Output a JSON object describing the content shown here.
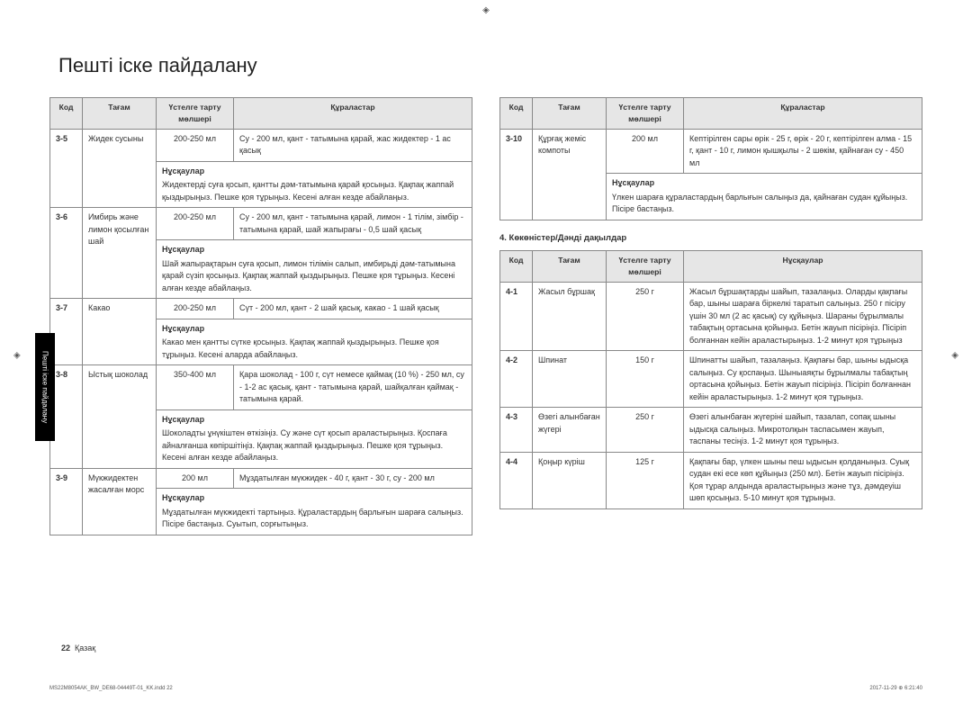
{
  "title": "Пешті іске пайдалану",
  "sideTab": "Пешті іске пайдалану",
  "headers": {
    "code": "Код",
    "food": "Тағам",
    "serving": "Үстелге тарту мөлшері",
    "ingredients": "Құраластар",
    "instructions": "Нұсқаулар"
  },
  "instrLabel": "Нұсқаулар",
  "subheading": "4. Көкөністер/Дәнді дақылдар",
  "left": [
    {
      "code": "3-5",
      "food": "Жидек сусыны",
      "serving": "200-250 мл",
      "ing": "Су - 200 мл, қант - татымына қарай, жас жидектер - 1 ас қасық",
      "instr": "Жидектерді суға қосып, қантты дәм-татымына қарай қосыңыз. Қақпақ жаппай қыздырыңыз. Пешке қоя тұрыңыз. Кесені алған кезде абайлаңыз."
    },
    {
      "code": "3-6",
      "food": "Имбирь және лимон қосылған шай",
      "serving": "200-250 мл",
      "ing": "Су - 200 мл, қант - татымына қарай, лимон - 1 тілім, зімбір - татымына қарай, шай жапырағы - 0,5 шай қасық",
      "instr": "Шай жапырақтарын суға қосып, лимон тілімін салып, имбирьді дәм-татымына қарай сүзіп қосыңыз. Қақпақ жаппай қыздырыңыз. Пешке қоя тұрыңыз. Кесені алған кезде абайлаңыз."
    },
    {
      "code": "3-7",
      "food": "Какао",
      "serving": "200-250 мл",
      "ing": "Сүт - 200 мл, қант - 2 шай қасық, какао - 1 шай қасық",
      "instr": "Какао мен қантты сүтке қосыңыз. Қақпақ жаппай қыздырыңыз. Пешке қоя тұрыңыз. Кесені аларда абайлаңыз."
    },
    {
      "code": "3-8",
      "food": "Ыстық шоколад",
      "serving": "350-400 мл",
      "ing": "Қара шоколад - 100 г, сүт немесе қаймақ (10 %) - 250 мл, су - 1-2 ас қасық, қант - татымына қарай, шайқалған қаймақ - татымына қарай.",
      "instr": "Шоколадты ұнүкіштен өткізіңіз. Су және сүт қосып араластырыңыз. Қоспаға айналғанша көпіршітіңіз. Қақпақ жаппай қыздырыңыз. Пешке қоя тұрыңыз. Кесені алған кезде абайлаңыз."
    },
    {
      "code": "3-9",
      "food": "Мүкжидектен жасалған морс",
      "serving": "200 мл",
      "ing": "Мұздатылған мүкжидек - 40 г, қант - 30 г, су - 200 мл",
      "instr": "Мұздатылған мүкжидекті тартыңыз. Құраластардың барлығын шараға салыңыз. Пісіре бастаңыз. Суытып, сорғытыңыз."
    }
  ],
  "rightTop": [
    {
      "code": "3-10",
      "food": "Құрғақ жеміс компоты",
      "serving": "200 мл",
      "ing": "Кептірілген сары өрік - 25 г, өрік - 20 г, кептірілген алма - 15 г, қант - 10 г, лимон қышқылы - 2 шөкім, қайнаған су - 450 мл",
      "instr": "Үлкен шараға құраластардың барлығын салыңыз да, қайнаған судан құйыңыз. Пісіре бастаңыз."
    }
  ],
  "rightBottom": [
    {
      "code": "4-1",
      "food": "Жасыл бұршақ",
      "serving": "250 г",
      "instr": "Жасыл бұршақтарды шайып, тазалаңыз. Оларды қақпағы бар, шыны шараға біркелкі таратып салыңыз. 250 г пісіру үшін 30 мл (2 ас қасық) су құйыңыз. Шараны бұрылмалы табақтың ортасына қойыңыз. Бетін жауып пісіріңіз. Пісіріп болғаннан кейін араластырыңыз. 1-2 минут қоя тұрыңыз"
    },
    {
      "code": "4-2",
      "food": "Шпинат",
      "serving": "150 г",
      "instr": "Шпинатты шайып, тазалаңыз. Қақпағы бар, шыны ыдысқа салыңыз. Су қоспаңыз. Шыныаяқты бұрылмалы табақтың ортасына қойыңыз. Бетін жауып пісіріңіз. Пісіріп болғаннан кейін араластырыңыз. 1-2 минут қоя тұрыңыз."
    },
    {
      "code": "4-3",
      "food": "Өзегі алынбаған жүгері",
      "serving": "250 г",
      "instr": "Өзегі алынбаған жүгеріні шайып, тазалап, сопақ шыны ыдысқа салыңыз. Микротолқын таспасымен жауып, таспаны тесіңіз. 1-2 минут қоя тұрыңыз."
    },
    {
      "code": "4-4",
      "food": "Қоңыр күріш",
      "serving": "125 г",
      "instr": "Қақпағы бар, үлкен шыны пеш ыдысын қолданыңыз. Суық судан екі есе көп құйыңыз (250 мл). Бетін жауып пісіріңіз. Қоя тұрар алдында араластырыңыз және тұз, дәмдеуіш шөп қосыңыз. 5-10 минут қоя тұрыңыз."
    }
  ],
  "pageNum": "22",
  "pageLang": "Қазақ",
  "tinyLeft": "MS22M8054AK_BW_DE68-04449T-01_KK.indd   22",
  "tinyRight": "2017-11-29   ⊕ 6:21:40"
}
